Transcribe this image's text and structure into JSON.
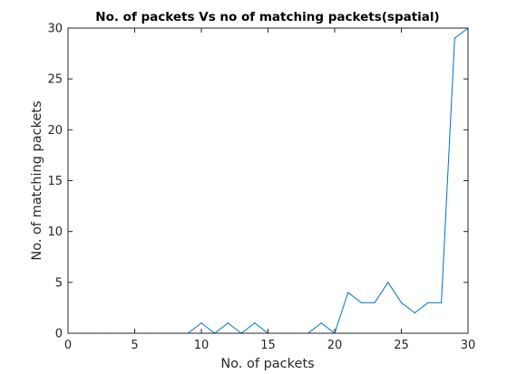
{
  "chart_data": {
    "type": "line",
    "title": "No. of packets Vs no of matching packets(spatial)",
    "xlabel": "No. of packets",
    "ylabel": "No. of matching packets",
    "xlim": [
      0,
      30
    ],
    "ylim": [
      0,
      30
    ],
    "xticks": [
      0,
      5,
      10,
      15,
      20,
      25,
      30
    ],
    "yticks": [
      0,
      5,
      10,
      15,
      20,
      25,
      30
    ],
    "grid": false,
    "legend": "none",
    "series": [
      {
        "color": "#0072BD",
        "x": [
          1,
          2,
          3,
          4,
          5,
          6,
          7,
          8,
          9,
          10,
          11,
          12,
          13,
          14,
          15,
          16,
          17,
          18,
          19,
          20,
          21,
          22,
          23,
          24,
          25,
          26,
          27,
          28,
          29,
          30
        ],
        "y": [
          0,
          0,
          0,
          0,
          0,
          0,
          0,
          0,
          0,
          1,
          0,
          1,
          0,
          1,
          0,
          0,
          0,
          0,
          1,
          0,
          4,
          3,
          3,
          5,
          3,
          2,
          3,
          3,
          29,
          30
        ]
      }
    ]
  }
}
